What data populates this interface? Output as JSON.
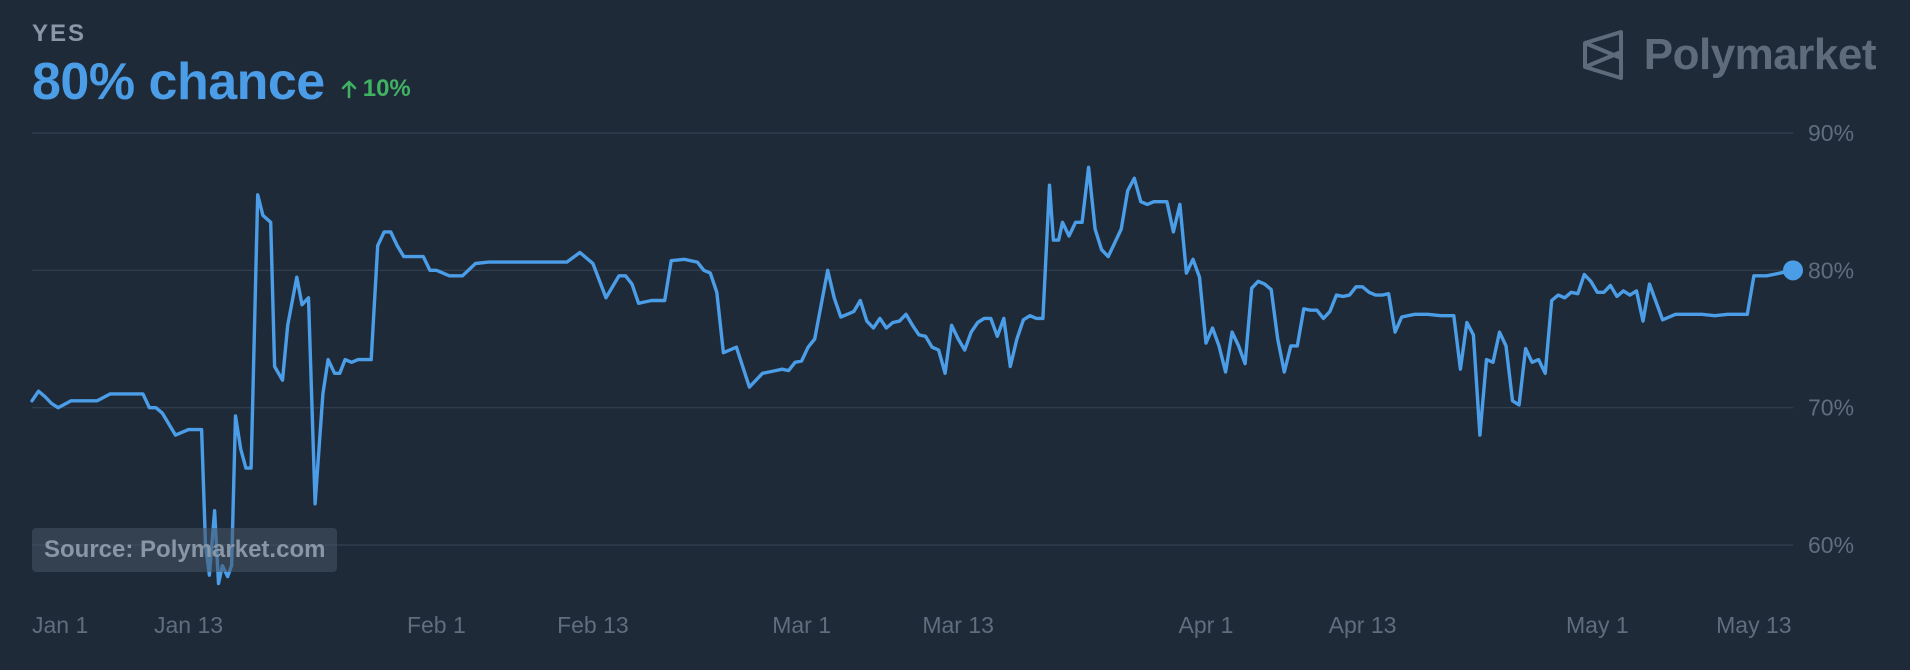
{
  "header": {
    "outcome_label": "YES",
    "chance_text": "80% chance",
    "change_text": "10%",
    "change_direction": "up"
  },
  "brand": {
    "name": "Polymarket",
    "icon": "polymarket-logo-icon"
  },
  "source_text": "Source: Polymarket.com",
  "colors": {
    "line": "#4a9de6",
    "positive": "#3fb263",
    "background": "#1f2a38",
    "grid": "#334050"
  },
  "chart_data": {
    "type": "line",
    "x_unit": "date (Jan 1 – May 16)",
    "ylim": [
      0.56,
      0.9
    ],
    "yticks": [
      {
        "value": 0.9,
        "label": "90%"
      },
      {
        "value": 0.8,
        "label": "80%"
      },
      {
        "value": 0.7,
        "label": "70%"
      },
      {
        "value": 0.6,
        "label": "60%"
      }
    ],
    "xticks": [
      {
        "day": 1,
        "label": "Jan 1"
      },
      {
        "day": 13,
        "label": "Jan 13"
      },
      {
        "day": 32,
        "label": "Feb 1"
      },
      {
        "day": 44,
        "label": "Feb 13"
      },
      {
        "day": 60,
        "label": "Mar 1"
      },
      {
        "day": 72,
        "label": "Mar 13"
      },
      {
        "day": 91,
        "label": "Apr 1"
      },
      {
        "day": 103,
        "label": "Apr 13"
      },
      {
        "day": 121,
        "label": "May 1"
      },
      {
        "day": 133,
        "label": "May 13"
      }
    ],
    "grid": true,
    "series": [
      {
        "x": [
          1,
          1.5,
          2,
          2.5,
          3,
          4,
          5,
          5.5,
          6,
          7,
          7.5,
          8,
          8.5,
          9,
          9.5,
          10,
          10.5,
          11,
          12,
          13,
          13.2,
          13.6,
          14,
          14.3,
          14.6,
          15,
          15.3,
          15.6,
          16,
          16.3,
          16.6,
          17,
          17.4,
          17.8,
          18.3,
          18.7,
          19.3,
          19.6,
          20.2,
          20.6,
          21.3,
          21.7,
          22.2,
          22.7,
          23.3,
          23.7,
          24.2,
          24.6,
          25,
          25.5,
          26,
          26.4,
          27,
          27.5,
          28,
          28.5,
          29,
          29.5,
          30,
          30.5,
          31,
          31.5,
          32,
          33,
          34,
          35,
          36,
          37,
          38,
          39,
          40,
          41,
          42,
          43,
          44,
          45,
          46,
          46.5,
          47,
          47.5,
          48,
          48.5,
          49,
          49.5,
          50,
          51,
          52,
          52.5,
          53,
          53.5,
          54,
          55,
          56,
          57,
          57.5,
          58,
          58.5,
          59,
          59.5,
          60,
          60.5,
          61,
          62,
          62.5,
          63,
          63.5,
          64,
          64.5,
          65,
          65.5,
          66,
          66.5,
          67,
          67.5,
          68,
          68.5,
          69,
          69.5,
          70,
          70.5,
          71,
          71.5,
          72,
          72.5,
          73,
          73.5,
          74,
          74.5,
          75,
          75.5,
          76,
          76.5,
          77,
          77.5,
          78,
          78.5,
          79,
          79.3,
          79.7,
          80,
          80.5,
          81,
          81.5,
          82,
          82.5,
          83,
          83.5,
          84,
          84.5,
          85,
          85.5,
          86,
          86.5,
          87,
          87.5,
          88,
          88.5,
          89,
          89.5,
          90,
          90.5,
          91,
          91.5,
          92,
          92.5,
          93,
          93.5,
          94,
          94.5,
          95,
          95.5,
          96,
          96.5,
          97,
          97.5,
          98,
          98.5,
          99,
          99.5,
          100,
          100.5,
          101,
          101.5,
          102,
          102.5,
          103,
          103.5,
          104,
          104.5,
          105,
          105.5,
          106,
          107,
          108,
          109,
          110,
          110.5,
          111,
          111.5,
          112,
          112.5,
          113,
          113.5,
          114,
          114.5,
          115,
          115.5,
          116,
          116.5,
          117,
          117.5,
          118,
          118.5,
          119,
          119.5,
          120,
          120.5,
          121,
          121.5,
          122,
          122.5,
          123,
          123.5,
          124,
          124.5,
          125,
          126,
          127,
          128,
          129,
          130,
          131,
          132,
          132.5,
          133,
          133.5,
          134,
          135,
          135.5,
          136
        ],
        "y": [
          0.705,
          0.712,
          0.708,
          0.703,
          0.7,
          0.705,
          0.705,
          0.705,
          0.705,
          0.71,
          0.71,
          0.71,
          0.71,
          0.71,
          0.71,
          0.7,
          0.7,
          0.696,
          0.68,
          0.684,
          0.684,
          0.684,
          0.684,
          0.6,
          0.578,
          0.625,
          0.572,
          0.585,
          0.577,
          0.585,
          0.694,
          0.67,
          0.656,
          0.656,
          0.855,
          0.84,
          0.835,
          0.73,
          0.72,
          0.76,
          0.795,
          0.775,
          0.78,
          0.63,
          0.71,
          0.735,
          0.725,
          0.725,
          0.735,
          0.733,
          0.735,
          0.735,
          0.735,
          0.818,
          0.828,
          0.828,
          0.818,
          0.81,
          0.81,
          0.81,
          0.81,
          0.8,
          0.8,
          0.796,
          0.796,
          0.805,
          0.806,
          0.806,
          0.806,
          0.806,
          0.806,
          0.806,
          0.806,
          0.813,
          0.805,
          0.78,
          0.796,
          0.796,
          0.79,
          0.776,
          0.777,
          0.778,
          0.778,
          0.778,
          0.807,
          0.808,
          0.806,
          0.8,
          0.798,
          0.784,
          0.74,
          0.744,
          0.715,
          0.725,
          0.726,
          0.727,
          0.728,
          0.727,
          0.733,
          0.734,
          0.744,
          0.75,
          0.8,
          0.78,
          0.766,
          0.768,
          0.77,
          0.778,
          0.763,
          0.758,
          0.765,
          0.758,
          0.762,
          0.763,
          0.768,
          0.76,
          0.753,
          0.752,
          0.744,
          0.742,
          0.725,
          0.76,
          0.75,
          0.742,
          0.755,
          0.762,
          0.765,
          0.765,
          0.752,
          0.765,
          0.73,
          0.75,
          0.764,
          0.767,
          0.765,
          0.765,
          0.862,
          0.822,
          0.822,
          0.835,
          0.825,
          0.835,
          0.835,
          0.875,
          0.83,
          0.815,
          0.81,
          0.82,
          0.83,
          0.858,
          0.867,
          0.85,
          0.848,
          0.85,
          0.85,
          0.85,
          0.828,
          0.848,
          0.798,
          0.808,
          0.795,
          0.747,
          0.758,
          0.745,
          0.726,
          0.755,
          0.745,
          0.732,
          0.787,
          0.792,
          0.79,
          0.786,
          0.75,
          0.726,
          0.745,
          0.745,
          0.772,
          0.771,
          0.771,
          0.765,
          0.77,
          0.782,
          0.781,
          0.782,
          0.788,
          0.788,
          0.784,
          0.782,
          0.782,
          0.783,
          0.755,
          0.766,
          0.768,
          0.768,
          0.767,
          0.767,
          0.728,
          0.762,
          0.753,
          0.68,
          0.735,
          0.733,
          0.755,
          0.745,
          0.705,
          0.702,
          0.743,
          0.733,
          0.735,
          0.725,
          0.778,
          0.782,
          0.78,
          0.784,
          0.783,
          0.797,
          0.792,
          0.784,
          0.784,
          0.789,
          0.781,
          0.785,
          0.782,
          0.785,
          0.763,
          0.79,
          0.764,
          0.768,
          0.768,
          0.768,
          0.767,
          0.768,
          0.768,
          0.768,
          0.796,
          0.796,
          0.796,
          0.798,
          0.799,
          0.8
        ]
      }
    ]
  }
}
